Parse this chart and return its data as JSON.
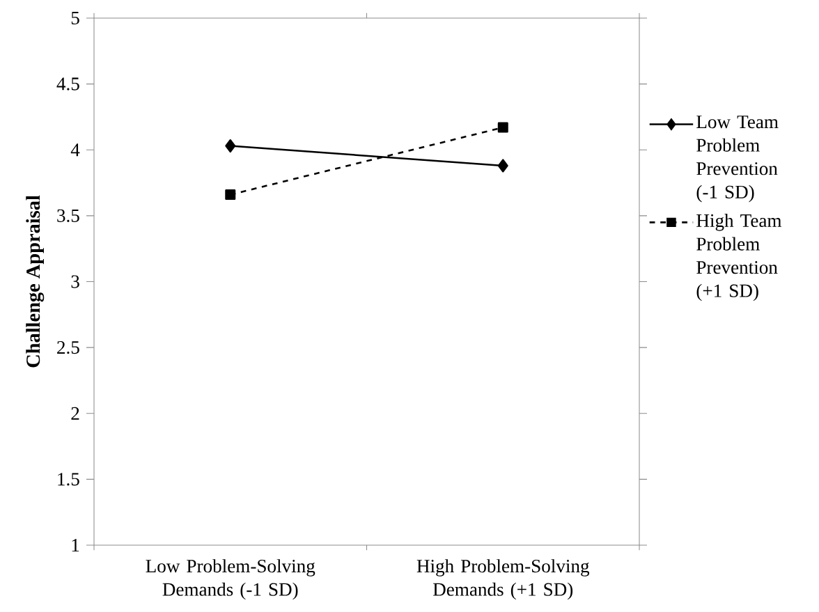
{
  "chart_data": {
    "type": "line",
    "ylabel": "Challenge Appraisal",
    "categories": [
      "Low Problem-Solving Demands (-1 SD)",
      "High Problem-Solving Demands (+1 SD)"
    ],
    "series": [
      {
        "name": "Low Team Problem Prevention (-1 SD)",
        "color": "#000000",
        "values": [
          4.03,
          3.88
        ],
        "marker": "diamond",
        "line_style": "solid"
      },
      {
        "name": "High Team Problem Prevention (+1 SD)",
        "color": "#000000",
        "values": [
          3.66,
          4.17
        ],
        "marker": "square",
        "line_style": "dashed"
      }
    ],
    "ylim": [
      1,
      5
    ],
    "yticks": [
      1,
      1.5,
      2,
      2.5,
      3,
      3.5,
      4,
      4.5,
      5
    ],
    "grid": false,
    "legend": "right"
  }
}
